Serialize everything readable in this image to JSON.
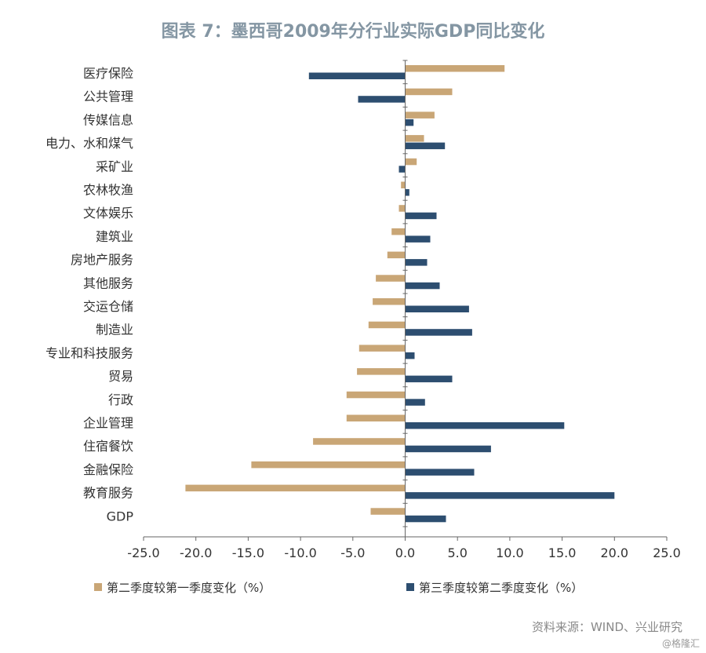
{
  "chart_data": {
    "type": "bar",
    "orientation": "horizontal",
    "title": "图表 7：墨西哥2009年分行业实际GDP同比变化",
    "categories": [
      "医疗保险",
      "公共管理",
      "传媒信息",
      "电力、水和煤气",
      "采矿业",
      "农林牧渔",
      "文体娱乐",
      "建筑业",
      "房地产服务",
      "其他服务",
      "交运仓储",
      "制造业",
      "专业和科技服务",
      "贸易",
      "行政",
      "企业管理",
      "住宿餐饮",
      "金融保险",
      "教育服务",
      "GDP"
    ],
    "series": [
      {
        "name": "第二季度较第一季度变化（%）",
        "color": "#c9a676",
        "values": [
          9.5,
          4.5,
          2.8,
          1.8,
          1.1,
          -0.4,
          -0.6,
          -1.3,
          -1.7,
          -2.8,
          -3.1,
          -3.5,
          -4.4,
          -4.6,
          -5.6,
          -5.6,
          -8.8,
          -14.7,
          -21.0,
          -3.3
        ]
      },
      {
        "name": "第三季度较第二季度变化（%）",
        "color": "#2d4e70",
        "values": [
          -9.2,
          -4.5,
          0.8,
          3.8,
          -0.6,
          0.4,
          3.0,
          2.4,
          2.1,
          3.3,
          6.1,
          6.4,
          0.9,
          4.5,
          1.9,
          15.2,
          8.2,
          6.6,
          20.0,
          3.9
        ]
      }
    ],
    "xlim": [
      -25,
      25
    ],
    "xticks": [
      "-25.0",
      "-20.0",
      "-15.0",
      "-10.0",
      "-5.0",
      "0.0",
      "5.0",
      "10.0",
      "15.0",
      "20.0",
      "25.0"
    ],
    "legend_position": "bottom",
    "grid": false
  },
  "source": "资料来源：WIND、兴业研究",
  "watermark": "@格隆汇",
  "colors": {
    "title": "#8496a3",
    "axis": "#333333"
  }
}
